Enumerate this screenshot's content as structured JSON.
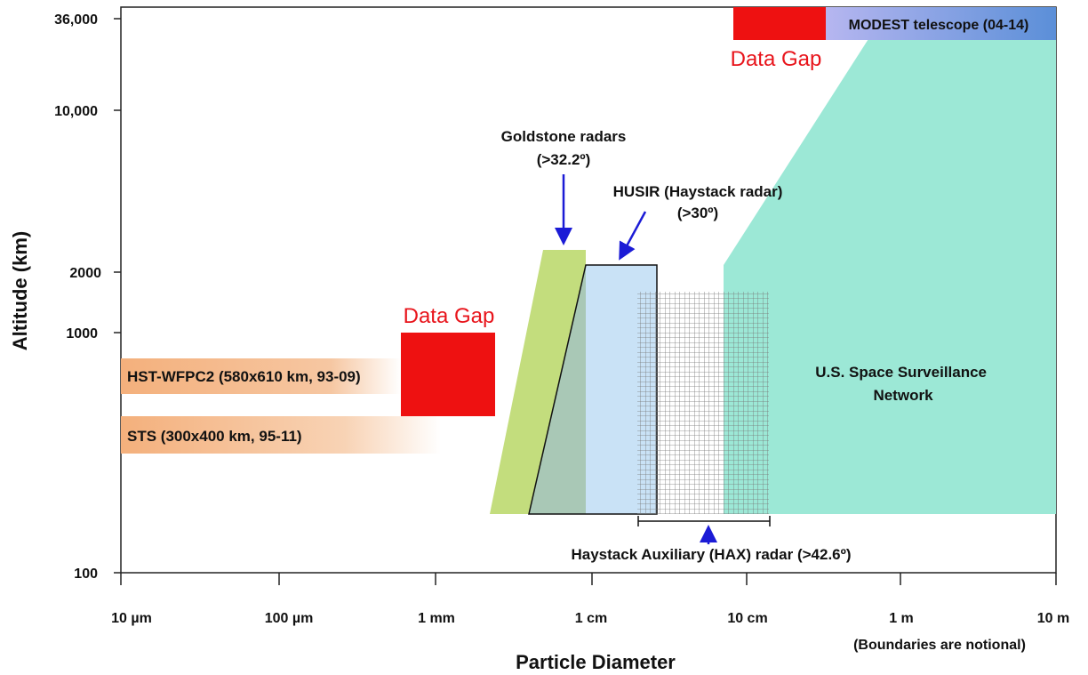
{
  "chart_data": {
    "type": "area",
    "x_scale": "log",
    "y_scale": "log",
    "xlabel": "Particle Diameter",
    "ylabel": "Altitude (km)",
    "xlim": [
      "10 µm",
      "10 m"
    ],
    "ylim": [
      100,
      36000
    ],
    "x_ticks": [
      "10 µm",
      "100 µm",
      "1 mm",
      "1 cm",
      "10 cm",
      "1 m",
      "10 m"
    ],
    "y_ticks": [
      "100",
      "1000",
      "2000",
      "10,000",
      "36,000"
    ],
    "note": "(Boundaries are notional)",
    "colors": {
      "gap": "#ee1111",
      "goldstone": "#c3dd7d",
      "husir": "#c9e2f6",
      "overlap": "#a9c8b6",
      "ssn": "#9ce8d6",
      "modest_start": "#b6b6f0",
      "modest_end": "#5b8fd8",
      "hst": "#f4b07c",
      "arrow": "#1b1bd6"
    },
    "regions": [
      {
        "id": "hst",
        "label": "HST-WFPC2 (580x610 km, 93-09)",
        "x_range": [
          "10 µm",
          "0.3 mm"
        ],
        "y_range": [
          580,
          610
        ]
      },
      {
        "id": "sts",
        "label": "STS (300x400 km, 95-11)",
        "x_range": [
          "10 µm",
          "0.3 mm"
        ],
        "y_range": [
          300,
          400
        ]
      },
      {
        "id": "gap_low",
        "label": "Data Gap",
        "x_range": [
          "0.6 mm",
          "2.4 mm"
        ],
        "y_range": [
          500,
          1000
        ]
      },
      {
        "id": "goldstone",
        "label": "Goldstone radars",
        "sublabel": "(>32.2º)",
        "x_range": [
          "2.2 mm",
          "6.5 mm"
        ],
        "y_range": [
          200,
          2300
        ]
      },
      {
        "id": "husir",
        "label": "HUSIR (Haystack radar)",
        "sublabel": "(>30º)",
        "x_range": [
          "3.8 mm",
          "2.6 cm"
        ],
        "y_range": [
          200,
          2000
        ]
      },
      {
        "id": "hax",
        "label": "Haystack Auxiliary (HAX) radar (>42.6º)",
        "x_range": [
          "1.4 cm",
          "14 cm"
        ],
        "y_range": [
          200,
          1600
        ]
      },
      {
        "id": "ssn",
        "label": "U.S. Space Surveillance Network",
        "x_range": [
          "7 cm",
          "10 m"
        ],
        "y_range": [
          200,
          36000
        ]
      },
      {
        "id": "gap_high",
        "label": "Data Gap",
        "x_range": [
          "8 cm",
          "32 cm"
        ],
        "y_range": [
          30000,
          36000
        ]
      },
      {
        "id": "modest",
        "label": "MODEST telescope (04-14)",
        "x_range": [
          "32 cm",
          "10 m"
        ],
        "y_range": [
          30000,
          36000
        ]
      }
    ]
  }
}
